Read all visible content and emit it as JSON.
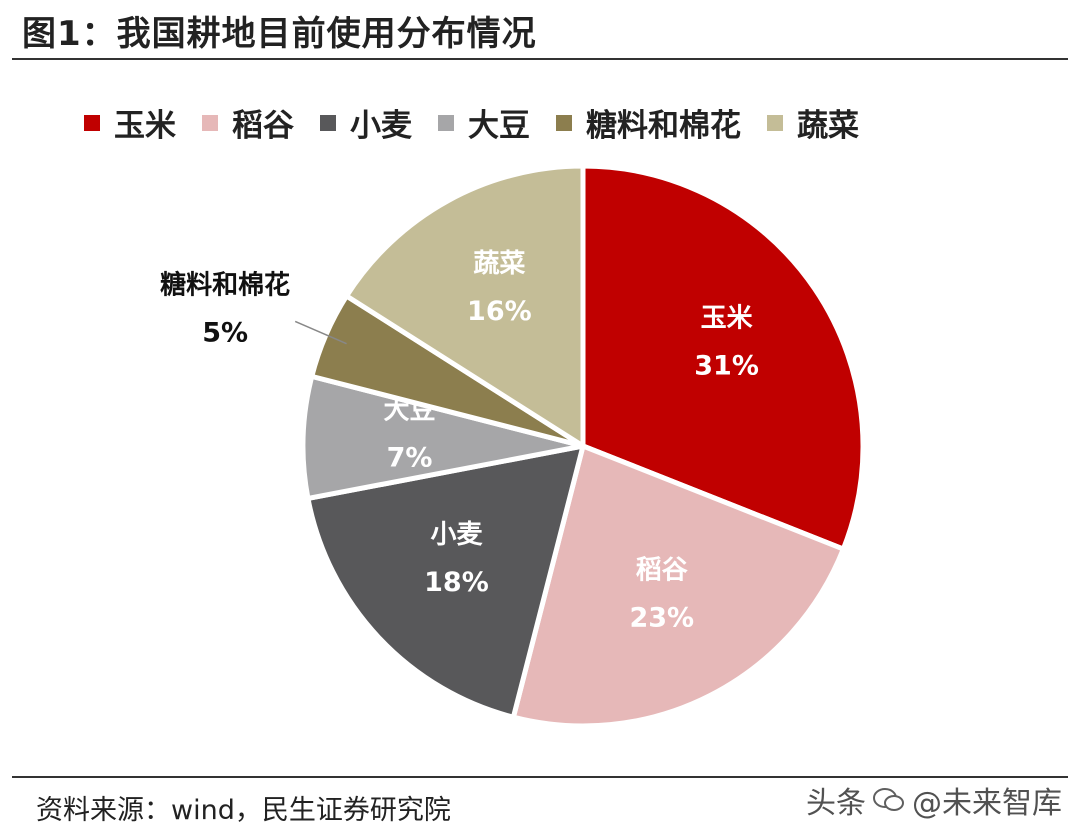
{
  "title": "图1：我国耕地目前使用分布情况",
  "source": "资料来源：wind，民生证券研究院",
  "watermark": {
    "left": "头条",
    "right": "@未来智库"
  },
  "chart_data": {
    "type": "pie",
    "title": "图1：我国耕地目前使用分布情况",
    "legend_placement": "top",
    "slices": [
      {
        "label": "玉米",
        "value": 31,
        "display": "31%",
        "color": "#C00000",
        "label_color": "#ffffff"
      },
      {
        "label": "稻谷",
        "value": 23,
        "display": "23%",
        "color": "#E6B8B8",
        "label_color": "#ffffff"
      },
      {
        "label": "小麦",
        "value": 18,
        "display": "18%",
        "color": "#58585A",
        "label_color": "#ffffff"
      },
      {
        "label": "大豆",
        "value": 7,
        "display": "7%",
        "color": "#A6A6A8",
        "label_color": "#ffffff"
      },
      {
        "label": "糖料和棉花",
        "value": 5,
        "display": "5%",
        "color": "#8C7E4E",
        "label_color": "#111111"
      },
      {
        "label": "蔬菜",
        "value": 16,
        "display": "16%",
        "color": "#C4BD97",
        "label_color": "#ffffff"
      }
    ]
  }
}
